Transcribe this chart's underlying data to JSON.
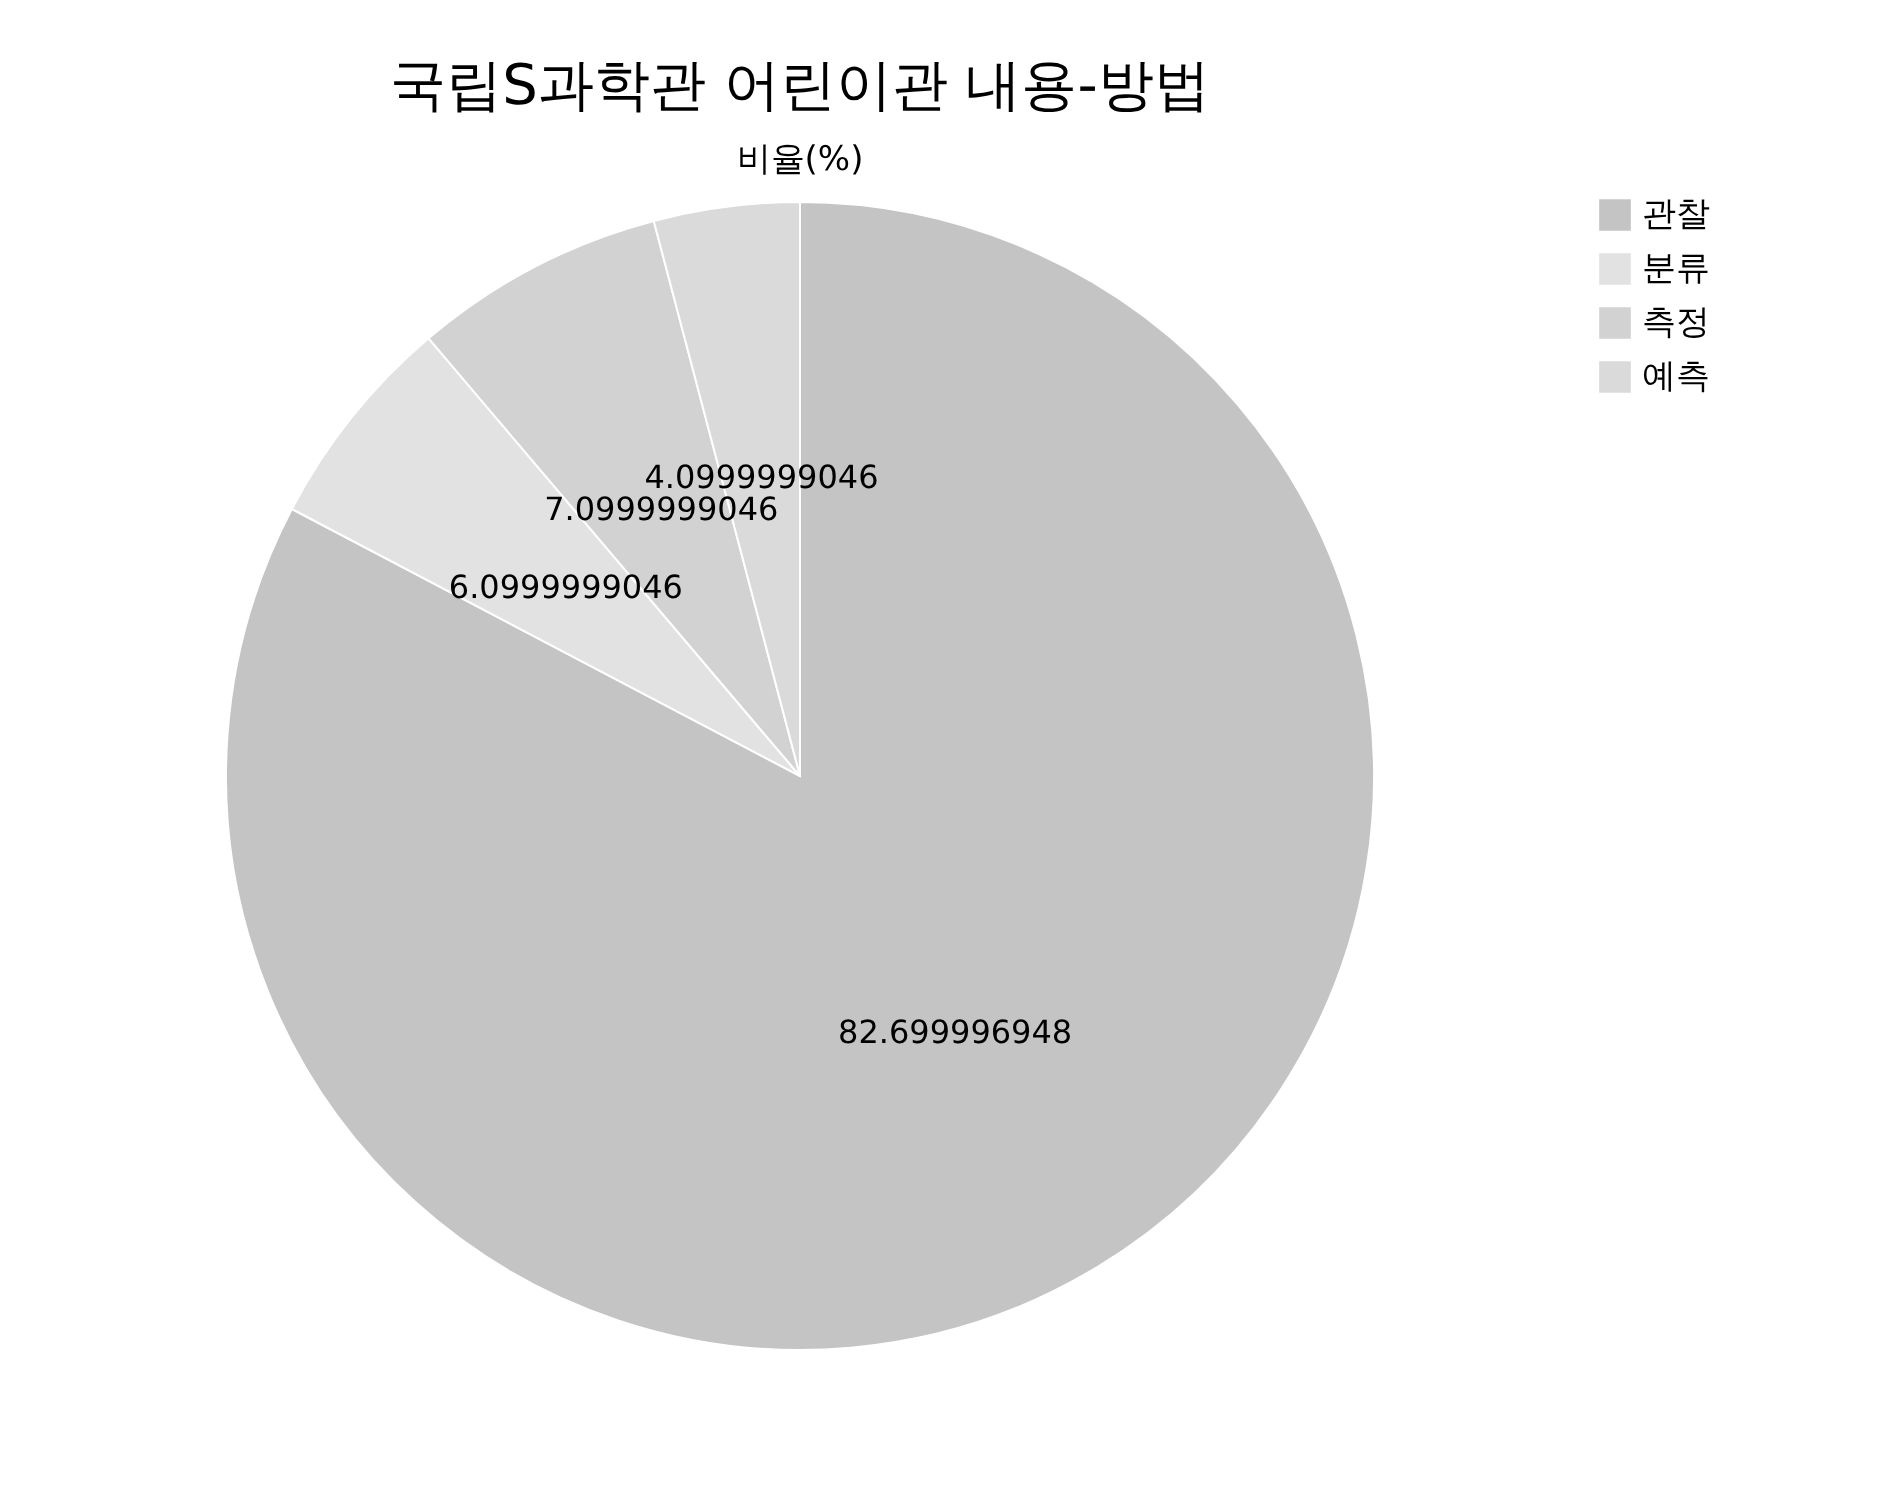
{
  "chart_data": {
    "type": "pie",
    "title": "국립S과학관 어린이관 내용-방법",
    "subtitle": "비율(%)",
    "categories": [
      "관찰",
      "분류",
      "측정",
      "예측"
    ],
    "values": [
      82.699996948,
      6.0999999046,
      7.0999999046,
      4.0999999046
    ],
    "colors": [
      "#c4c4c4",
      "#e2e2e2",
      "#d2d2d2",
      "#dadada"
    ],
    "data_labels": true,
    "legend": "right"
  }
}
